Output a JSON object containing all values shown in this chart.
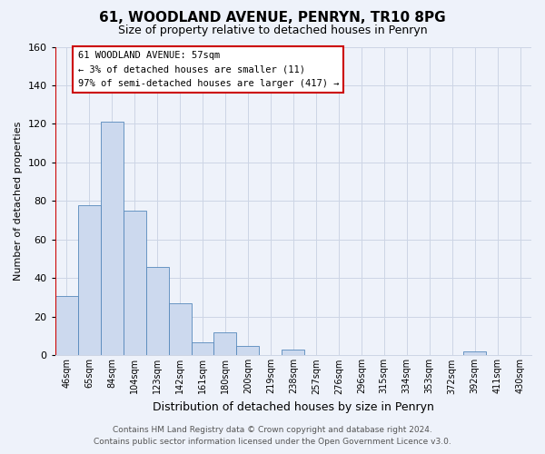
{
  "title": "61, WOODLAND AVENUE, PENRYN, TR10 8PG",
  "subtitle": "Size of property relative to detached houses in Penryn",
  "xlabel": "Distribution of detached houses by size in Penryn",
  "ylabel": "Number of detached properties",
  "bin_labels": [
    "46sqm",
    "65sqm",
    "84sqm",
    "104sqm",
    "123sqm",
    "142sqm",
    "161sqm",
    "180sqm",
    "200sqm",
    "219sqm",
    "238sqm",
    "257sqm",
    "276sqm",
    "296sqm",
    "315sqm",
    "334sqm",
    "353sqm",
    "372sqm",
    "392sqm",
    "411sqm",
    "430sqm"
  ],
  "bar_values": [
    31,
    78,
    121,
    75,
    46,
    27,
    7,
    12,
    5,
    0,
    3,
    0,
    0,
    0,
    0,
    0,
    0,
    0,
    2,
    0,
    0
  ],
  "bar_fill_color": "#ccd9ee",
  "bar_edge_color": "#5588bb",
  "highlight_bar_index": 0,
  "highlight_line_color": "#cc0000",
  "ylim": [
    0,
    160
  ],
  "yticks": [
    0,
    20,
    40,
    60,
    80,
    100,
    120,
    140,
    160
  ],
  "annotation_title": "61 WOODLAND AVENUE: 57sqm",
  "annotation_line1": "← 3% of detached houses are smaller (11)",
  "annotation_line2": "97% of semi-detached houses are larger (417) →",
  "annotation_box_color": "#ffffff",
  "annotation_box_edge": "#cc0000",
  "grid_color": "#ccd5e5",
  "background_color": "#eef2fa",
  "footer_line1": "Contains HM Land Registry data © Crown copyright and database right 2024.",
  "footer_line2": "Contains public sector information licensed under the Open Government Licence v3.0."
}
